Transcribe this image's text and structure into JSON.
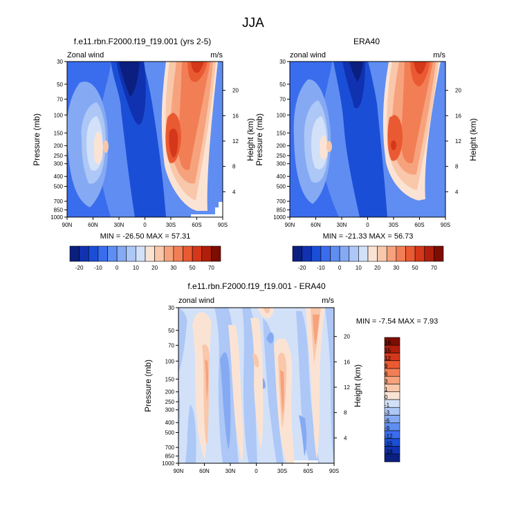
{
  "figure_title": "JJA",
  "chart_data": [
    {
      "type": "heatmap",
      "title": "f.e11.rbn.F2000.f19_f19.001 (yrs 2-5)",
      "left_label": "Zonal wind",
      "right_label": "m/s",
      "ylabel": "Pressure (mb)",
      "y2label": "Height (km)",
      "xticks": [
        "90N",
        "60N",
        "30N",
        "0",
        "30S",
        "60S",
        "90S"
      ],
      "yticks": [
        "30",
        "50",
        "70",
        "100",
        "150",
        "200",
        "250",
        "300",
        "400",
        "500",
        "700",
        "850",
        "1000"
      ],
      "y2ticks": [
        "20",
        "16",
        "12",
        "8",
        "4"
      ],
      "stats": "MIN = -26.50  MAX =  57.31",
      "min": -26.5,
      "max": 57.31,
      "colorbar": {
        "orientation": "horizontal",
        "tick_labels": [
          "-20",
          "-10",
          "0",
          "10",
          "20",
          "30",
          "50",
          "70"
        ],
        "colors": [
          "#0a1f7f",
          "#1032b0",
          "#1b4ed6",
          "#3a6cee",
          "#5f8df2",
          "#85aaf3",
          "#adc7f6",
          "#d2e1f8",
          "#fbe3d4",
          "#f9c7aa",
          "#f6a27d",
          "#f27e55",
          "#ea5a32",
          "#d5371a",
          "#b01e0c",
          "#7d0d02"
        ]
      },
      "features": [
        {
          "type": "westerly_jet",
          "lat": "30S–40S",
          "p_mb": 200,
          "value": 57.31
        },
        {
          "type": "stratospheric_westerlies",
          "lat": "60S",
          "p_mb": 30
        },
        {
          "type": "easterlies",
          "lat": "0–30N",
          "p_mb": 30,
          "value": -26.5
        },
        {
          "type": "westerly_core",
          "lat": "45N",
          "p_mb": 200
        }
      ]
    },
    {
      "type": "heatmap",
      "title": "ERA40",
      "left_label": "zonal wind",
      "right_label": "m/s",
      "ylabel": "Pressure (mb)",
      "y2label": "Height (km)",
      "xticks": [
        "90N",
        "60N",
        "30N",
        "0",
        "30S",
        "60S",
        "90S"
      ],
      "yticks": [
        "30",
        "50",
        "70",
        "100",
        "150",
        "200",
        "250",
        "300",
        "400",
        "500",
        "700",
        "850",
        "1000"
      ],
      "y2ticks": [
        "20",
        "16",
        "12",
        "8",
        "4"
      ],
      "stats": "MIN = -21.33  MAX =  56.73",
      "min": -21.33,
      "max": 56.73,
      "colorbar": {
        "orientation": "horizontal",
        "tick_labels": [
          "-20",
          "-10",
          "0",
          "10",
          "20",
          "30",
          "50",
          "70"
        ],
        "colors": [
          "#0a1f7f",
          "#1032b0",
          "#1b4ed6",
          "#3a6cee",
          "#5f8df2",
          "#85aaf3",
          "#adc7f6",
          "#d2e1f8",
          "#fbe3d4",
          "#f9c7aa",
          "#f6a27d",
          "#f27e55",
          "#ea5a32",
          "#d5371a",
          "#b01e0c",
          "#7d0d02"
        ]
      }
    },
    {
      "type": "heatmap",
      "title": "f.e11.rbn.F2000.f19_f19.001 - ERA40",
      "left_label": "zonal wind",
      "right_label": "m/s",
      "ylabel": "Pressure (mb)",
      "y2label": "Height (km)",
      "xticks": [
        "90N",
        "60N",
        "30N",
        "0",
        "30S",
        "60S",
        "90S"
      ],
      "yticks": [
        "30",
        "50",
        "70",
        "100",
        "150",
        "200",
        "250",
        "300",
        "400",
        "500",
        "700",
        "850",
        "1000"
      ],
      "y2ticks": [
        "20",
        "16",
        "12",
        "8",
        "4"
      ],
      "stats": "MIN = -7.54  MAX =  7.93",
      "min": -7.54,
      "max": 7.93,
      "colorbar": {
        "orientation": "vertical",
        "tick_labels": [
          "18",
          "15",
          "12",
          "9",
          "6",
          "3",
          "1",
          "0",
          "-1",
          "-3",
          "-6",
          "-9",
          "-12",
          "-15",
          "-18"
        ],
        "colors": [
          "#7d0d02",
          "#b01e0c",
          "#d5371a",
          "#ea5a32",
          "#f27e55",
          "#f6a27d",
          "#f9c7aa",
          "#fbe3d4",
          "#d2e1f8",
          "#adc7f6",
          "#85aaf3",
          "#5f8df2",
          "#3a6cee",
          "#1b4ed6",
          "#1032b0",
          "#0a1f7f"
        ]
      }
    }
  ]
}
